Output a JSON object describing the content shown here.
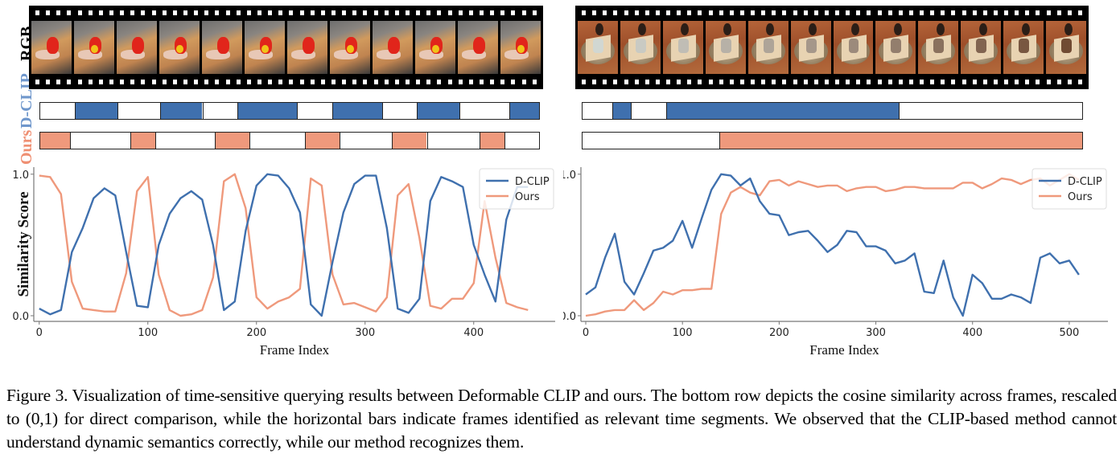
{
  "row_labels": {
    "rgb": "RGB",
    "dclip": "D-CLIP",
    "ours": "Ours"
  },
  "colors": {
    "dclip": "#3f70ae",
    "ours": "#ef997c",
    "dclip_label": "#6f97cc",
    "ours_label": "#ef8f72"
  },
  "filmstrips": [
    {
      "scene": "kitchen",
      "frame_count": 12
    },
    {
      "scene": "table",
      "frame_count": 12
    }
  ],
  "segment_bars": [
    {
      "panel": "left",
      "dclip": [
        {
          "start": 0.0,
          "end": 0.07,
          "on": false
        },
        {
          "start": 0.07,
          "end": 0.155,
          "on": true
        },
        {
          "start": 0.155,
          "end": 0.24,
          "on": false
        },
        {
          "start": 0.24,
          "end": 0.325,
          "on": true
        },
        {
          "start": 0.325,
          "end": 0.395,
          "on": false
        },
        {
          "start": 0.395,
          "end": 0.515,
          "on": true
        },
        {
          "start": 0.515,
          "end": 0.585,
          "on": false
        },
        {
          "start": 0.585,
          "end": 0.685,
          "on": true
        },
        {
          "start": 0.685,
          "end": 0.755,
          "on": false
        },
        {
          "start": 0.755,
          "end": 0.84,
          "on": true
        },
        {
          "start": 0.84,
          "end": 0.94,
          "on": false
        },
        {
          "start": 0.94,
          "end": 1.0,
          "on": true
        }
      ],
      "ours": [
        {
          "start": 0.0,
          "end": 0.06,
          "on": true
        },
        {
          "start": 0.06,
          "end": 0.18,
          "on": false
        },
        {
          "start": 0.18,
          "end": 0.23,
          "on": true
        },
        {
          "start": 0.23,
          "end": 0.35,
          "on": false
        },
        {
          "start": 0.35,
          "end": 0.42,
          "on": true
        },
        {
          "start": 0.42,
          "end": 0.53,
          "on": false
        },
        {
          "start": 0.53,
          "end": 0.6,
          "on": true
        },
        {
          "start": 0.6,
          "end": 0.705,
          "on": false
        },
        {
          "start": 0.705,
          "end": 0.775,
          "on": true
        },
        {
          "start": 0.775,
          "end": 0.88,
          "on": false
        },
        {
          "start": 0.88,
          "end": 0.93,
          "on": true
        },
        {
          "start": 0.93,
          "end": 1.0,
          "on": false
        }
      ]
    },
    {
      "panel": "right",
      "dclip": [
        {
          "start": 0.0,
          "end": 0.06,
          "on": false
        },
        {
          "start": 0.06,
          "end": 0.096,
          "on": true
        },
        {
          "start": 0.096,
          "end": 0.167,
          "on": false
        },
        {
          "start": 0.167,
          "end": 0.633,
          "on": true
        },
        {
          "start": 0.633,
          "end": 1.0,
          "on": false
        }
      ],
      "ours": [
        {
          "start": 0.0,
          "end": 0.273,
          "on": false
        },
        {
          "start": 0.273,
          "end": 1.0,
          "on": true
        }
      ]
    }
  ],
  "chart_data": [
    {
      "type": "line",
      "title": "",
      "xlabel": "Frame Index",
      "ylabel": "Similarity Score",
      "xlim": [
        -5,
        475
      ],
      "ylim": [
        -0.04,
        1.05
      ],
      "xticks": [
        0,
        100,
        200,
        300,
        400
      ],
      "yticks": [
        0.0,
        1.0
      ],
      "ytick_labels": [
        "0.0",
        "1.0"
      ],
      "grid": false,
      "legend": "top-right",
      "x": [
        0,
        10,
        20,
        30,
        40,
        50,
        60,
        70,
        80,
        90,
        100,
        110,
        120,
        130,
        140,
        150,
        160,
        170,
        180,
        190,
        200,
        210,
        220,
        230,
        240,
        250,
        260,
        270,
        280,
        290,
        300,
        310,
        320,
        330,
        340,
        350,
        360,
        370,
        380,
        390,
        400,
        410,
        420,
        430,
        440,
        450
      ],
      "series": [
        {
          "name": "D-CLIP",
          "color": "#3f70ae",
          "values": [
            0.05,
            0.01,
            0.04,
            0.45,
            0.62,
            0.83,
            0.9,
            0.85,
            0.45,
            0.07,
            0.06,
            0.5,
            0.72,
            0.83,
            0.88,
            0.82,
            0.5,
            0.04,
            0.1,
            0.6,
            0.92,
            1.0,
            0.99,
            0.9,
            0.73,
            0.08,
            0.0,
            0.38,
            0.73,
            0.93,
            0.99,
            0.99,
            0.62,
            0.05,
            0.02,
            0.12,
            0.81,
            0.98,
            0.95,
            0.91,
            0.5,
            0.29,
            0.1,
            0.68,
            0.91,
            0.91
          ]
        },
        {
          "name": "Ours",
          "color": "#ef997c",
          "values": [
            0.99,
            0.98,
            0.86,
            0.24,
            0.05,
            0.04,
            0.03,
            0.03,
            0.3,
            0.88,
            0.98,
            0.29,
            0.04,
            0.0,
            0.01,
            0.04,
            0.27,
            0.95,
            1.0,
            0.76,
            0.13,
            0.05,
            0.1,
            0.13,
            0.19,
            0.97,
            0.92,
            0.29,
            0.08,
            0.09,
            0.06,
            0.03,
            0.13,
            0.85,
            0.93,
            0.55,
            0.07,
            0.05,
            0.12,
            0.12,
            0.23,
            0.81,
            0.41,
            0.09,
            0.06,
            0.04
          ]
        }
      ]
    },
    {
      "type": "line",
      "title": "",
      "xlabel": "Frame Index",
      "ylabel": "",
      "xlim": [
        -5,
        540
      ],
      "ylim": [
        -0.04,
        1.05
      ],
      "xticks": [
        0,
        100,
        200,
        300,
        400,
        500
      ],
      "yticks": [
        0.0,
        1.0
      ],
      "ytick_labels": [
        "0.0",
        "1.0"
      ],
      "grid": false,
      "legend": "top-right",
      "x": [
        0,
        10,
        20,
        30,
        40,
        50,
        60,
        70,
        80,
        90,
        100,
        110,
        120,
        130,
        140,
        150,
        160,
        170,
        180,
        190,
        200,
        210,
        220,
        230,
        240,
        250,
        260,
        270,
        280,
        290,
        300,
        310,
        320,
        330,
        340,
        350,
        360,
        370,
        380,
        390,
        400,
        410,
        420,
        430,
        440,
        450,
        460,
        470,
        480,
        490,
        500,
        510
      ],
      "series": [
        {
          "name": "D-CLIP",
          "color": "#3f70ae",
          "values": [
            0.15,
            0.2,
            0.41,
            0.58,
            0.24,
            0.15,
            0.3,
            0.46,
            0.48,
            0.53,
            0.67,
            0.48,
            0.69,
            0.89,
            1.0,
            0.99,
            0.92,
            0.97,
            0.81,
            0.72,
            0.71,
            0.57,
            0.59,
            0.6,
            0.53,
            0.45,
            0.5,
            0.6,
            0.59,
            0.49,
            0.49,
            0.46,
            0.37,
            0.39,
            0.44,
            0.17,
            0.16,
            0.39,
            0.13,
            0.0,
            0.29,
            0.23,
            0.12,
            0.12,
            0.15,
            0.13,
            0.09,
            0.41,
            0.44,
            0.37,
            0.39,
            0.29
          ]
        },
        {
          "name": "Ours",
          "color": "#ef997c",
          "values": [
            0.0,
            0.01,
            0.03,
            0.04,
            0.04,
            0.11,
            0.04,
            0.09,
            0.17,
            0.15,
            0.18,
            0.18,
            0.19,
            0.19,
            0.72,
            0.87,
            0.91,
            0.87,
            0.85,
            0.95,
            0.96,
            0.92,
            0.95,
            0.93,
            0.91,
            0.92,
            0.92,
            0.88,
            0.9,
            0.91,
            0.91,
            0.88,
            0.89,
            0.91,
            0.91,
            0.9,
            0.9,
            0.9,
            0.9,
            0.94,
            0.94,
            0.9,
            0.93,
            0.97,
            0.96,
            0.93,
            0.96,
            0.97,
            0.92,
            0.96,
            1.0,
            0.96
          ]
        }
      ]
    }
  ],
  "caption": "Figure 3. Visualization of time-sensitive querying results between Deformable CLIP and ours. The bottom row depicts the cosine similarity across frames, rescaled to (0,1) for direct comparison, while the horizontal bars indicate frames identified as relevant time segments. We observed that the CLIP-based method cannot understand dynamic semantics correctly, while our method recognizes them."
}
